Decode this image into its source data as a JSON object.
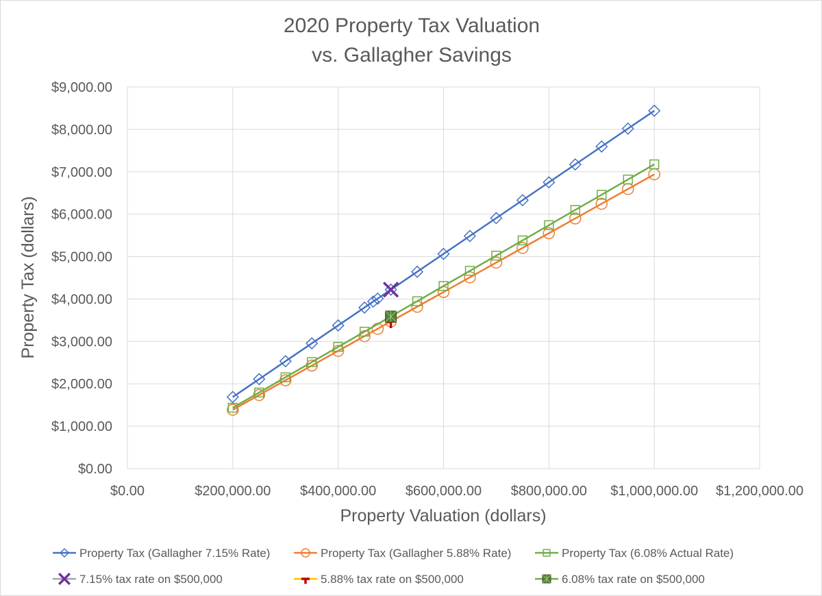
{
  "chart_data": {
    "type": "line",
    "title": [
      "2020 Property Tax Valuation",
      "vs. Gallagher Savings"
    ],
    "xlabel": "Property Valuation (dollars)",
    "ylabel": "Property Tax (dollars)",
    "xlim": [
      0,
      1200000
    ],
    "ylim": [
      0,
      9000
    ],
    "grid": true,
    "legend_position": "bottom",
    "x_ticks": [
      0,
      200000,
      400000,
      600000,
      800000,
      1000000,
      1200000
    ],
    "x_tick_labels": [
      "$0.00",
      "$200,000.00",
      "$400,000.00",
      "$600,000.00",
      "$800,000.00",
      "$1,000,000.00",
      "$1,200,000.00"
    ],
    "y_ticks": [
      0,
      1000,
      2000,
      3000,
      4000,
      5000,
      6000,
      7000,
      8000,
      9000
    ],
    "y_tick_labels": [
      "$0.00",
      "$1,000.00",
      "$2,000.00",
      "$3,000.00",
      "$4,000.00",
      "$5,000.00",
      "$6,000.00",
      "$7,000.00",
      "$8,000.00",
      "$9,000.00"
    ],
    "series": [
      {
        "name": "Property Tax (Gallagher 7.15% Rate)",
        "color": "#4472c4",
        "marker": "diamond",
        "line": true,
        "x": [
          200000,
          250000,
          300000,
          350000,
          400000,
          450000,
          466667,
          475000,
          500000,
          550000,
          600000,
          650000,
          700000,
          750000,
          800000,
          850000,
          900000,
          950000,
          1000000
        ],
        "y": [
          1688,
          2110,
          2532,
          2954,
          3376,
          3798,
          3939,
          4009,
          4220,
          4642,
          5064,
          5486,
          5908,
          6330,
          6752,
          7174,
          7596,
          8018,
          8440
        ]
      },
      {
        "name": "Property Tax (Gallagher 5.88% Rate)",
        "color": "#ed7d31",
        "marker": "circle",
        "line": true,
        "x": [
          200000,
          250000,
          300000,
          350000,
          400000,
          450000,
          475000,
          500000,
          550000,
          600000,
          650000,
          700000,
          750000,
          800000,
          850000,
          900000,
          950000,
          1000000
        ],
        "y": [
          1388,
          1735,
          2082,
          2429,
          2776,
          3123,
          3297,
          3470,
          3817,
          4164,
          4511,
          4858,
          5205,
          5552,
          5899,
          6246,
          6593,
          6940
        ]
      },
      {
        "name": "Property Tax (6.08% Actual Rate)",
        "color": "#70ad47",
        "marker": "square",
        "line": true,
        "x": [
          200000,
          250000,
          300000,
          350000,
          400000,
          450000,
          500000,
          550000,
          600000,
          650000,
          700000,
          750000,
          800000,
          850000,
          900000,
          950000,
          1000000
        ],
        "y": [
          1435,
          1794,
          2153,
          2512,
          2870,
          3229,
          3588,
          3947,
          4306,
          4664,
          5023,
          5382,
          5741,
          6100,
          6458,
          6817,
          7176
        ]
      },
      {
        "name": "7.15% tax rate on $500,000",
        "color": "#7030a0",
        "legend_line_color": "#a5a5a5",
        "marker": "x",
        "line": false,
        "x": [
          500000
        ],
        "y": [
          4220
        ]
      },
      {
        "name": "5.88% tax rate on $500,000",
        "color": "#c00000",
        "legend_line_color": "#ffc000",
        "marker": "plus",
        "line": false,
        "x": [
          500000
        ],
        "y": [
          3470
        ]
      },
      {
        "name": "6.08% tax rate on $500,000",
        "color": "#548235",
        "legend_line_color": "#70ad47",
        "marker": "filled-square",
        "line": false,
        "x": [
          500000
        ],
        "y": [
          3588
        ]
      }
    ]
  }
}
